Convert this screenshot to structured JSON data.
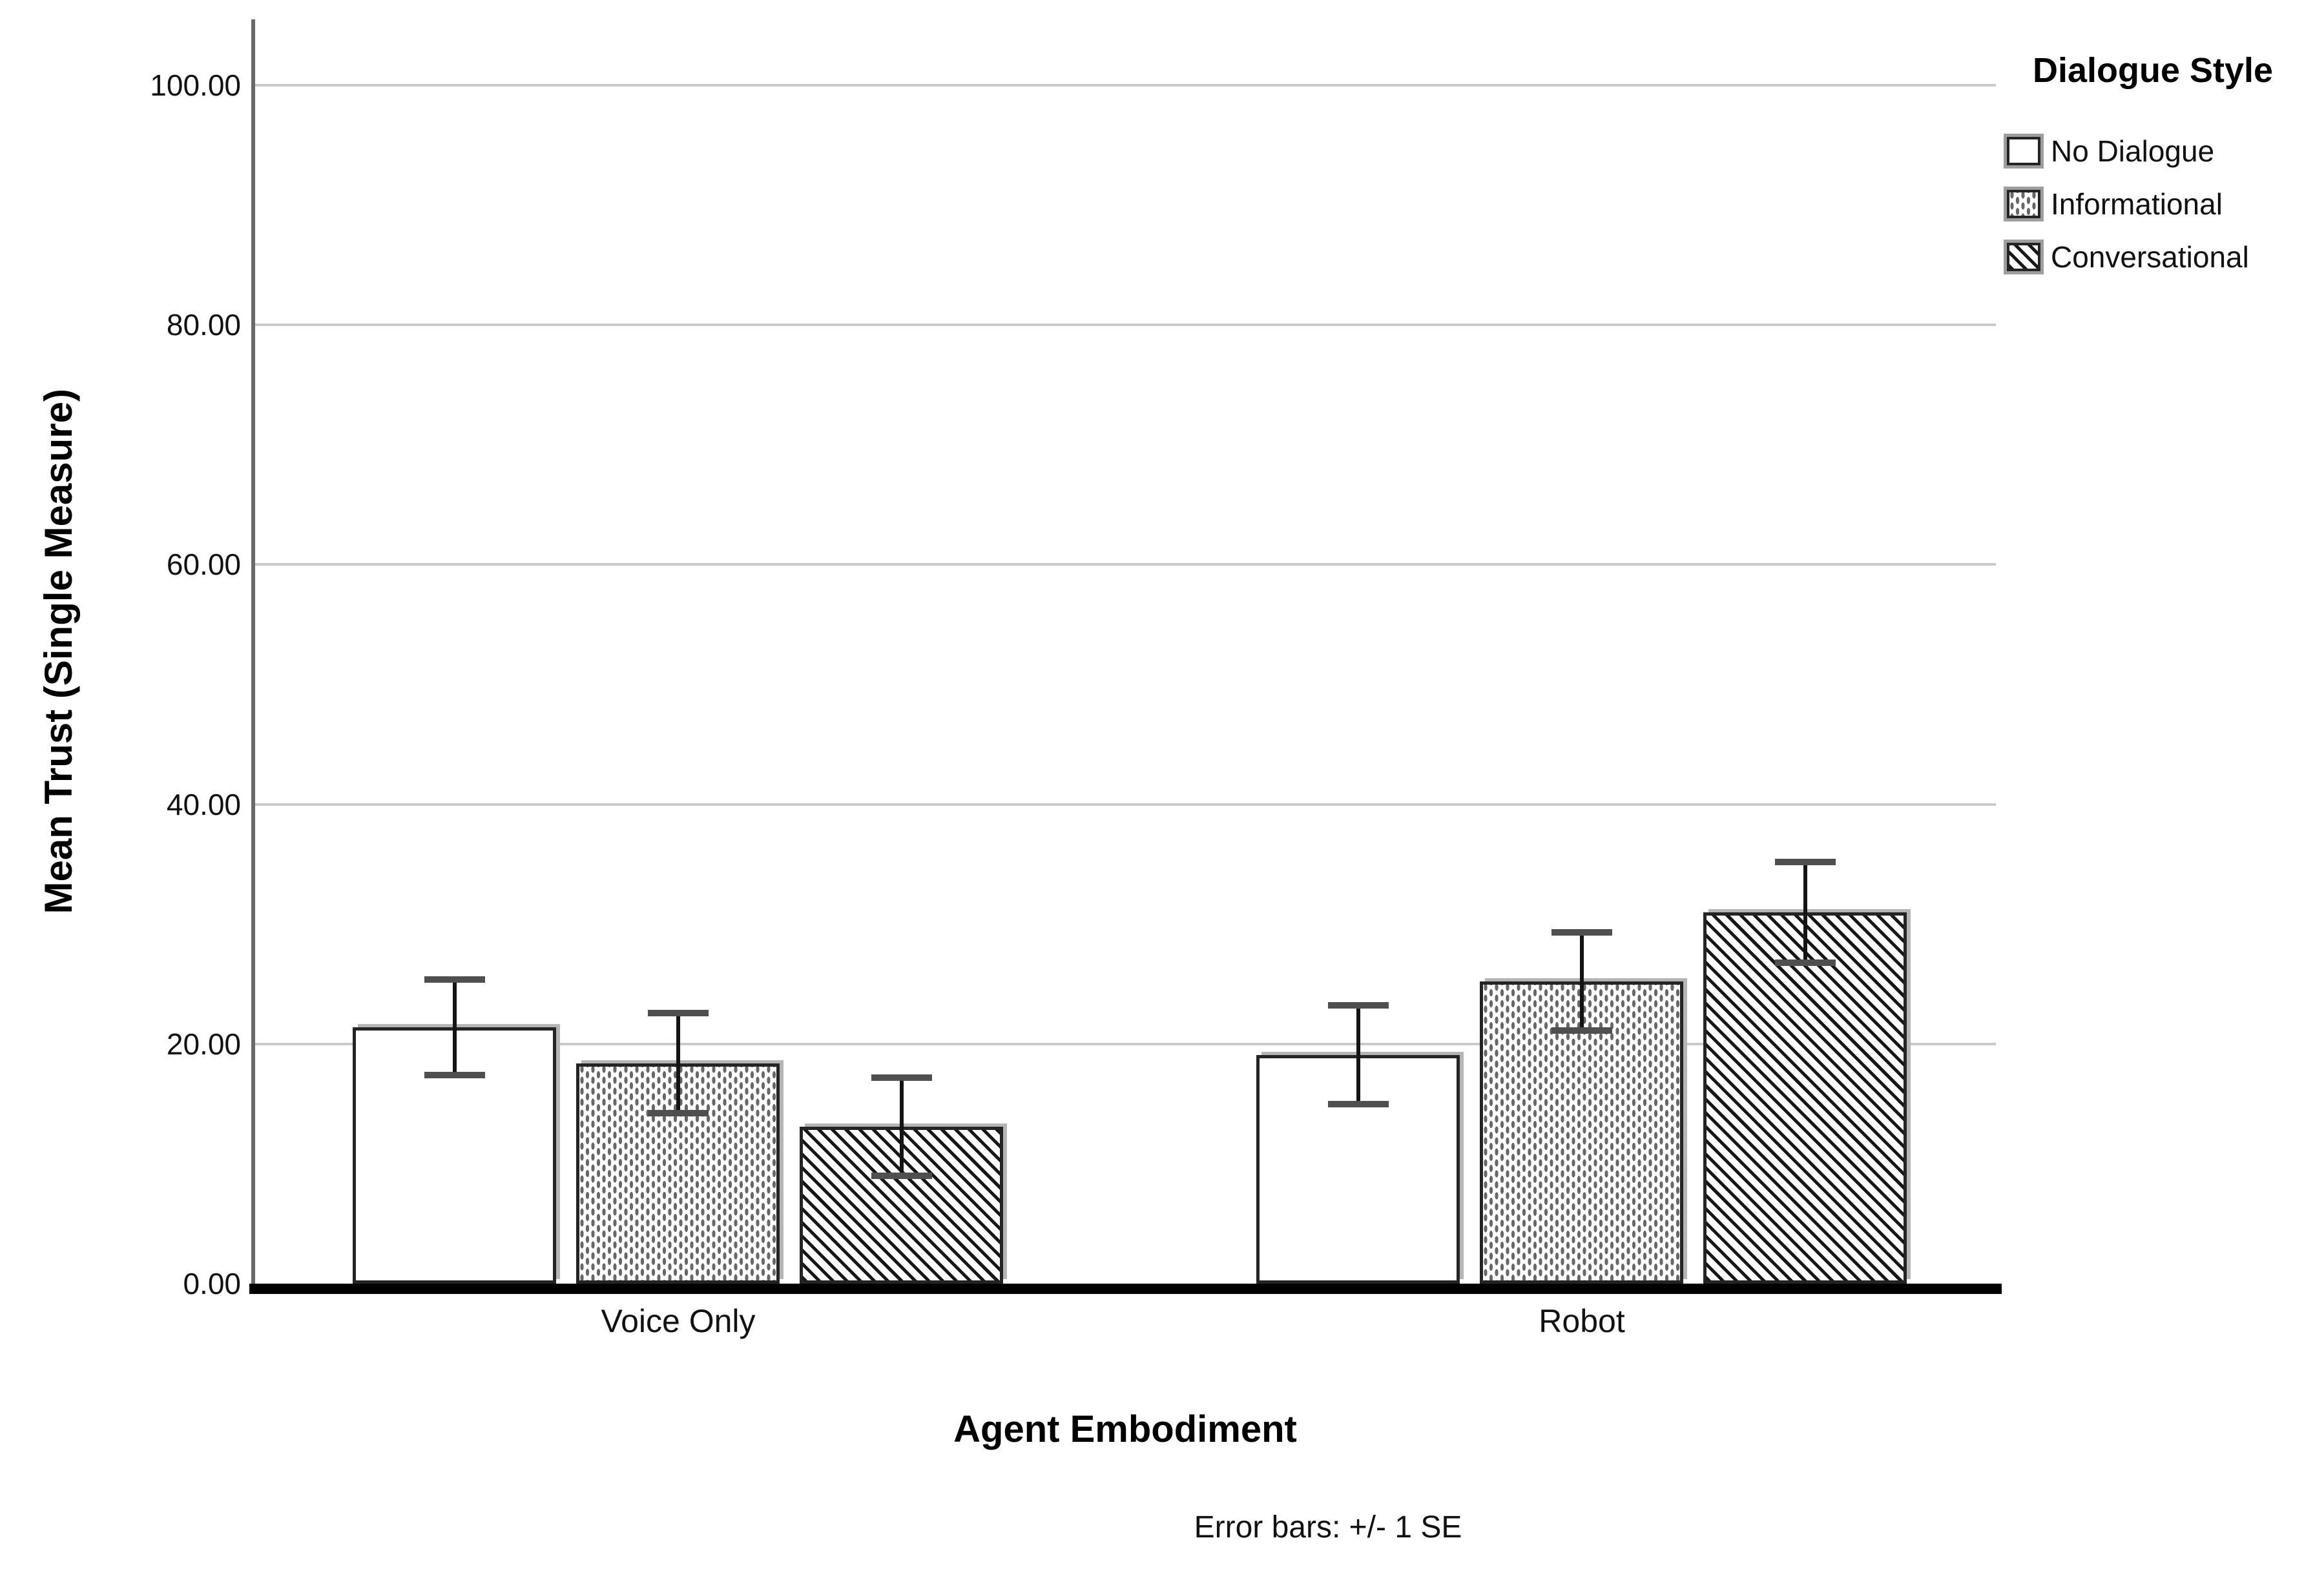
{
  "figure": {
    "background": "#ffffff"
  },
  "chart_data": {
    "type": "bar",
    "title": "",
    "xlabel": "Agent Embodiment",
    "ylabel": "Mean Trust (Single Measure)",
    "footnote": "Error bars: +/- 1 SE",
    "categories": [
      "Voice Only",
      "Robot"
    ],
    "series": [
      {
        "name": "No Dialogue",
        "pattern": "plain",
        "values": [
          21.4,
          19.1
        ],
        "se": [
          4.0,
          4.1
        ]
      },
      {
        "name": "Informational",
        "pattern": "dots",
        "values": [
          18.4,
          25.2
        ],
        "se": [
          4.2,
          4.1
        ]
      },
      {
        "name": "Conversational",
        "pattern": "diagonal",
        "values": [
          13.1,
          31.0
        ],
        "se": [
          4.1,
          4.2
        ]
      }
    ],
    "ylim": [
      0,
      105.5
    ],
    "yticks": [
      {
        "value": 0,
        "label": "0.00"
      },
      {
        "value": 20,
        "label": "20.00"
      },
      {
        "value": 40,
        "label": "40.00"
      },
      {
        "value": 60,
        "label": "60.00"
      },
      {
        "value": 80,
        "label": "80.00"
      },
      {
        "value": 100,
        "label": "100.00"
      }
    ],
    "grid": "horizontal",
    "legend_title": "Dialogue Style",
    "legend_position": "top-right",
    "error_bar_type": "+/- 1 SE"
  },
  "colors": {
    "background": "#ffffff",
    "grid": "#c9c9c9",
    "y_axis": "#6a6a6a",
    "baseline": "#000000",
    "bar_border": "#242424",
    "bar_fill": "#ffffff",
    "dots_ink": "#676767",
    "hatch_ink": "#161616",
    "error_line": "#141414",
    "error_cap": "#4f4f4f",
    "text": "#111111"
  }
}
